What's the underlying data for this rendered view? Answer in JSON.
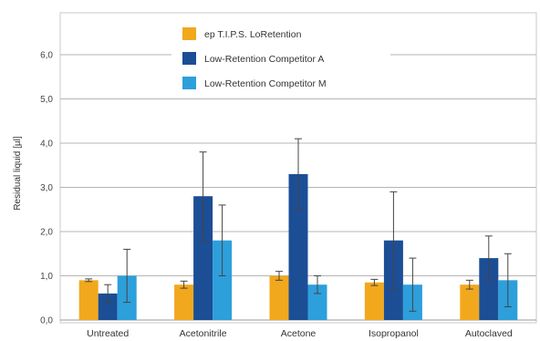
{
  "chart_data": {
    "type": "bar",
    "title": "",
    "xlabel": "",
    "ylabel": "Residual liquid [µl]",
    "ylim": [
      0,
      7
    ],
    "yticks": [
      0,
      1,
      2,
      3,
      4,
      5,
      6
    ],
    "ytick_labels": [
      "0,0",
      "1,0",
      "2,0",
      "3,0",
      "4,0",
      "5,0",
      "6,0"
    ],
    "grid": true,
    "legend_position": "top-center",
    "categories": [
      "Untreated",
      "Acetonitrile",
      "Acetone",
      "Isopropanol",
      "Autoclaved"
    ],
    "series": [
      {
        "name": "ep T.I.P.S. LoRetention",
        "color": "#f2a81c",
        "values": [
          0.9,
          0.8,
          1.0,
          0.85,
          0.8
        ],
        "errors": [
          0.03,
          0.08,
          0.1,
          0.07,
          0.1
        ]
      },
      {
        "name": "Low-Retention Competitor A",
        "color": "#1c4e96",
        "values": [
          0.6,
          2.8,
          3.3,
          1.8,
          1.4
        ],
        "errors": [
          0.2,
          1.0,
          0.8,
          1.1,
          0.5
        ]
      },
      {
        "name": "Low-Retention Competitor M",
        "color": "#2d9fdb",
        "values": [
          1.0,
          1.8,
          0.8,
          0.8,
          0.9
        ],
        "errors": [
          0.6,
          0.8,
          0.2,
          0.6,
          0.6
        ]
      }
    ]
  }
}
